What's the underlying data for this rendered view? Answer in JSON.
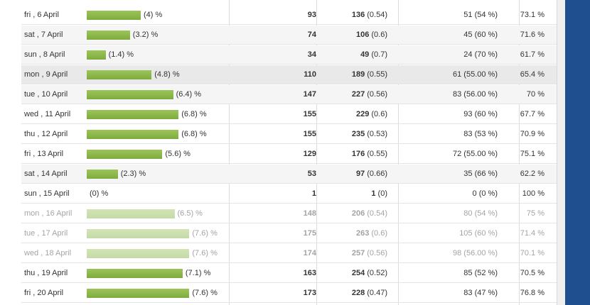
{
  "rows": [
    {
      "date": "fri , 6 April",
      "bar_pct": 4,
      "bar_label": "(4) %",
      "visits": "93",
      "pageviews": "136",
      "pv_ratio": "(0.54)",
      "col4": "51 (54 %)",
      "col5": "73.1 %",
      "style": "normal"
    },
    {
      "date": "sat , 7 April",
      "bar_pct": 3.2,
      "bar_label": "(3.2) %",
      "visits": "74",
      "pageviews": "106",
      "pv_ratio": "(0.6)",
      "col4": "45 (60 %)",
      "col5": "71.6 %",
      "style": "alt"
    },
    {
      "date": "sun , 8 April",
      "bar_pct": 1.4,
      "bar_label": "(1.4) %",
      "visits": "34",
      "pageviews": "49",
      "pv_ratio": "(0.7)",
      "col4": "24 (70 %)",
      "col5": "61.7 %",
      "style": "alt"
    },
    {
      "date": "mon , 9 April",
      "bar_pct": 4.8,
      "bar_label": "(4.8) %",
      "visits": "110",
      "pageviews": "189",
      "pv_ratio": "(0.55)",
      "col4": "61 (55.00 %)",
      "col5": "65.4 %",
      "style": "hl"
    },
    {
      "date": "tue , 10 April",
      "bar_pct": 6.4,
      "bar_label": "(6.4) %",
      "visits": "147",
      "pageviews": "227",
      "pv_ratio": "(0.56)",
      "col4": "83 (56.00 %)",
      "col5": "70 %",
      "style": "alt"
    },
    {
      "date": "wed , 11 April",
      "bar_pct": 6.8,
      "bar_label": "(6.8) %",
      "visits": "155",
      "pageviews": "229",
      "pv_ratio": "(0.6)",
      "col4": "93 (60 %)",
      "col5": "67.7 %",
      "style": "normal"
    },
    {
      "date": "thu , 12 April",
      "bar_pct": 6.8,
      "bar_label": "(6.8) %",
      "visits": "155",
      "pageviews": "235",
      "pv_ratio": "(0.53)",
      "col4": "83 (53 %)",
      "col5": "70.9 %",
      "style": "normal"
    },
    {
      "date": "fri , 13 April",
      "bar_pct": 5.6,
      "bar_label": "(5.6) %",
      "visits": "129",
      "pageviews": "176",
      "pv_ratio": "(0.55)",
      "col4": "72 (55.00 %)",
      "col5": "75.1 %",
      "style": "normal"
    },
    {
      "date": "sat , 14 April",
      "bar_pct": 2.3,
      "bar_label": "(2.3) %",
      "visits": "53",
      "pageviews": "97",
      "pv_ratio": "(0.66)",
      "col4": "35 (66 %)",
      "col5": "62.2 %",
      "style": "alt"
    },
    {
      "date": "sun , 15 April",
      "bar_pct": 0,
      "bar_label": "(0) %",
      "visits": "1",
      "pageviews": "1",
      "pv_ratio": "(0)",
      "col4": "0 (0 %)",
      "col5": "100 %",
      "style": "normal"
    },
    {
      "date": "mon , 16 April",
      "bar_pct": 6.5,
      "bar_label": "(6.5) %",
      "visits": "148",
      "pageviews": "206",
      "pv_ratio": "(0.54)",
      "col4": "80 (54 %)",
      "col5": "75 %",
      "style": "faded"
    },
    {
      "date": "tue , 17 April",
      "bar_pct": 7.6,
      "bar_label": "(7.6) %",
      "visits": "175",
      "pageviews": "263",
      "pv_ratio": "(0.6)",
      "col4": "105 (60 %)",
      "col5": "71.4 %",
      "style": "faded"
    },
    {
      "date": "wed , 18 April",
      "bar_pct": 7.6,
      "bar_label": "(7.6) %",
      "visits": "174",
      "pageviews": "257",
      "pv_ratio": "(0.56)",
      "col4": "98 (56.00 %)",
      "col5": "70.1 %",
      "style": "faded"
    },
    {
      "date": "thu , 19 April",
      "bar_pct": 7.1,
      "bar_label": "(7.1) %",
      "visits": "163",
      "pageviews": "254",
      "pv_ratio": "(0.52)",
      "col4": "85 (52 %)",
      "col5": "70.5 %",
      "style": "normal"
    },
    {
      "date": "fri , 20 April",
      "bar_pct": 7.6,
      "bar_label": "(7.6) %",
      "visits": "173",
      "pageviews": "228",
      "pv_ratio": "(0.47)",
      "col4": "83 (47 %)",
      "col5": "76.8 %",
      "style": "normal"
    }
  ]
}
